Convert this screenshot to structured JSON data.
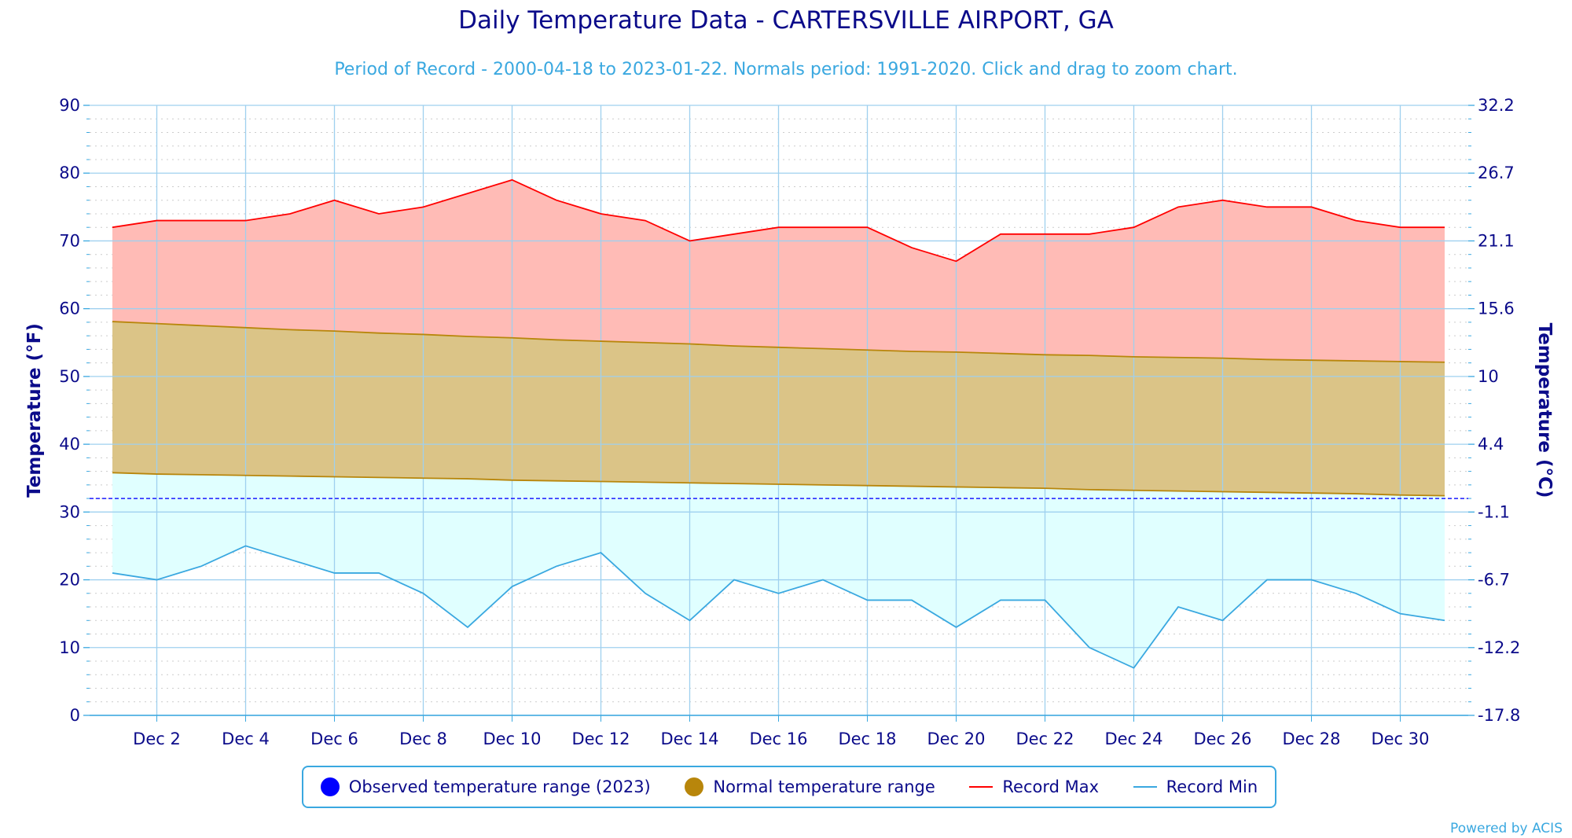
{
  "chart_data": {
    "type": "area",
    "title": "Daily Temperature Data - CARTERSVILLE AIRPORT, GA",
    "subtitle": "Period of Record - 2000-04-18 to 2023-01-22. Normals period: 1991-2020. Click and drag to zoom chart.",
    "ylabel": "Temperature (°F)",
    "ylabel_right": "Temperature (°C)",
    "ylim": [
      0,
      90
    ],
    "xlim": [
      1,
      31
    ],
    "y_ticks": [
      0,
      10,
      20,
      30,
      40,
      50,
      60,
      70,
      80,
      90
    ],
    "y_ticks_right": [
      "-17.8",
      "-12.2",
      "-6.7",
      "-1.1",
      "4.4",
      "10",
      "15.6",
      "21.1",
      "26.7",
      "32.2"
    ],
    "x_ticks": [
      2,
      4,
      6,
      8,
      10,
      12,
      14,
      16,
      18,
      20,
      22,
      24,
      26,
      28,
      30
    ],
    "x_tick_labels": [
      "Dec 2",
      "Dec 4",
      "Dec 6",
      "Dec 8",
      "Dec 10",
      "Dec 12",
      "Dec 14",
      "Dec 16",
      "Dec 18",
      "Dec 20",
      "Dec 22",
      "Dec 24",
      "Dec 26",
      "Dec 28",
      "Dec 30"
    ],
    "x": [
      1,
      2,
      3,
      4,
      5,
      6,
      7,
      8,
      9,
      10,
      11,
      12,
      13,
      14,
      15,
      16,
      17,
      18,
      19,
      20,
      21,
      22,
      23,
      24,
      25,
      26,
      27,
      28,
      29,
      30,
      31
    ],
    "freezing_line": 32,
    "grid": true,
    "legend_position": "bottom",
    "series": [
      {
        "name": "Record Max",
        "color": "#ff0000",
        "values": [
          72,
          73,
          73,
          73,
          74,
          76,
          74,
          75,
          77,
          79,
          76,
          74,
          73,
          70,
          71,
          72,
          72,
          72,
          69,
          67,
          71,
          71,
          71,
          72,
          75,
          76,
          75,
          75,
          73,
          72,
          72
        ]
      },
      {
        "name": "Record Min",
        "color": "#3aa8e0",
        "values": [
          21,
          20,
          22,
          25,
          23,
          21,
          21,
          18,
          13,
          19,
          22,
          24,
          18,
          14,
          20,
          18,
          20,
          17,
          17,
          13,
          17,
          17,
          10,
          7,
          16,
          14,
          20,
          20,
          18,
          15,
          14
        ]
      },
      {
        "name": "Normal temperature range",
        "color": "#b8860b",
        "high": [
          58.1,
          57.8,
          57.5,
          57.2,
          56.9,
          56.7,
          56.4,
          56.2,
          55.9,
          55.7,
          55.4,
          55.2,
          55.0,
          54.8,
          54.5,
          54.3,
          54.1,
          53.9,
          53.7,
          53.6,
          53.4,
          53.2,
          53.1,
          52.9,
          52.8,
          52.7,
          52.5,
          52.4,
          52.3,
          52.2,
          52.1
        ],
        "low": [
          35.8,
          35.6,
          35.5,
          35.4,
          35.3,
          35.2,
          35.1,
          35.0,
          34.9,
          34.7,
          34.6,
          34.5,
          34.4,
          34.3,
          34.2,
          34.1,
          34.0,
          33.9,
          33.8,
          33.7,
          33.6,
          33.5,
          33.3,
          33.2,
          33.1,
          33.0,
          32.9,
          32.8,
          32.7,
          32.5,
          32.4
        ]
      }
    ],
    "legend": [
      {
        "label": "Observed temperature range (2023)",
        "color": "#0000ff",
        "shape": "dot"
      },
      {
        "label": "Normal temperature range",
        "color": "#b8860b",
        "shape": "dot"
      },
      {
        "label": "Record Max",
        "color": "#ff0000",
        "shape": "line"
      },
      {
        "label": "Record Min",
        "color": "#3aa8e0",
        "shape": "line"
      }
    ],
    "credit": "Powered by ACIS",
    "fills": {
      "record_max": "#ffbbb6",
      "normal": "#dbc487",
      "record_min": "#e0ffff"
    }
  }
}
